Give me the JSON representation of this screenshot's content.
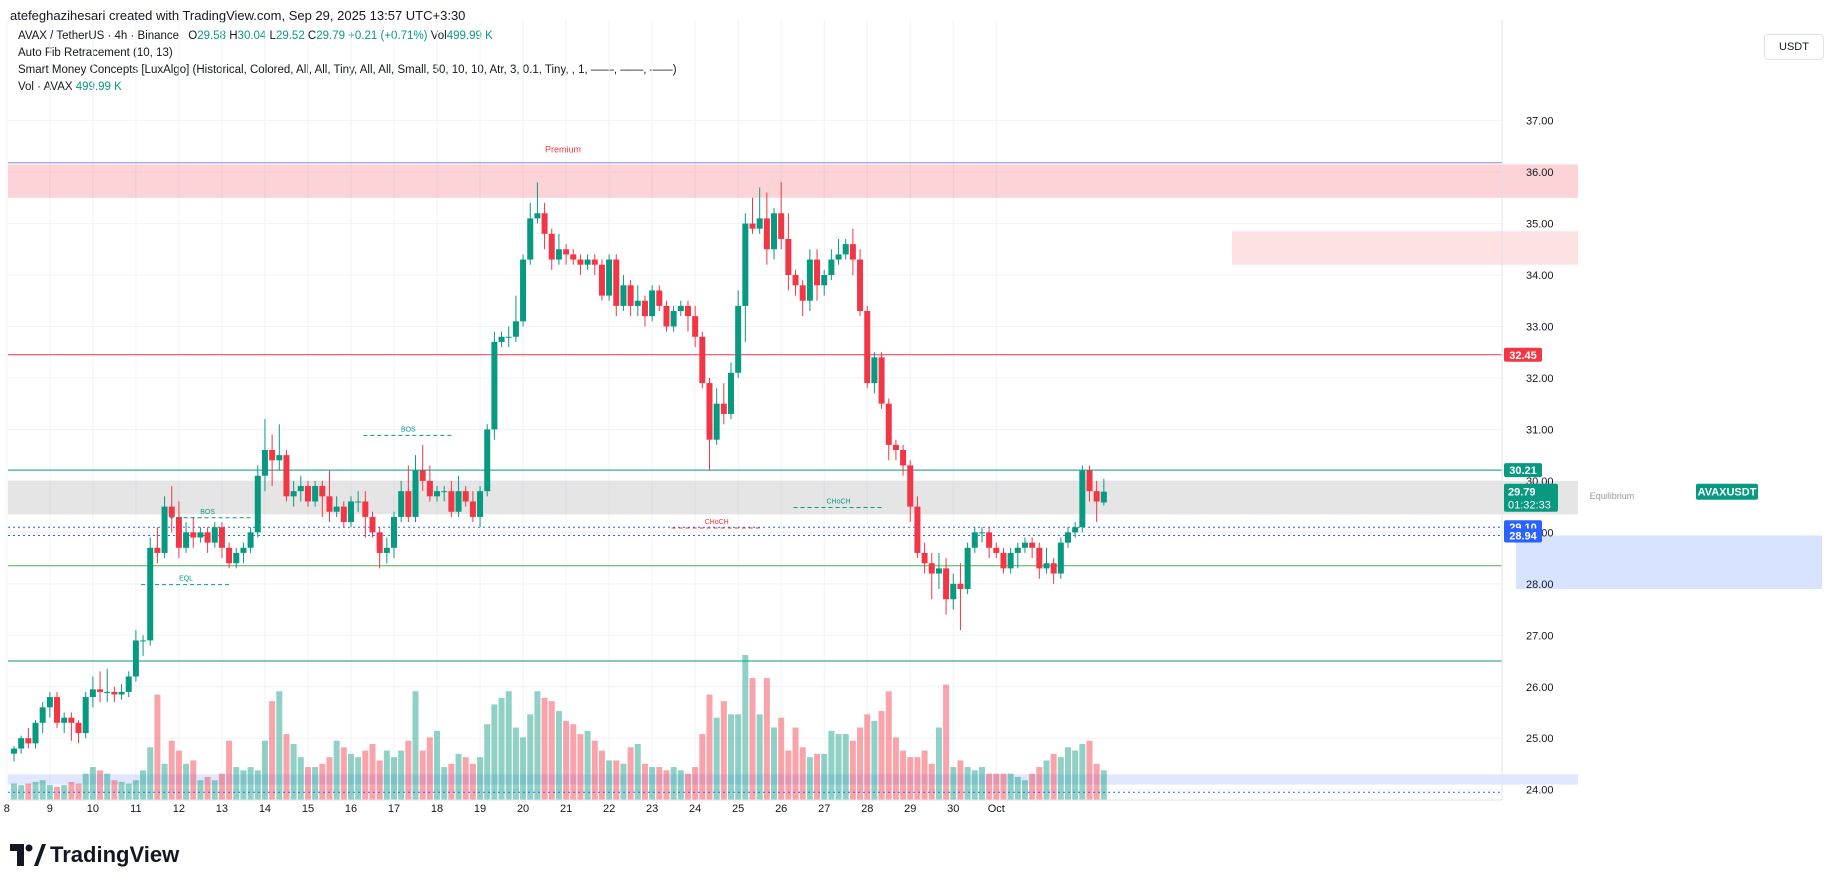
{
  "header": {
    "created_by": "atefeghazihesari created with TradingView.com, Sep 29, 2025 13:57 UTC+3:30"
  },
  "legend": {
    "symbol": "AVAX / TetherUS · 4h · Binance",
    "o_label": "O",
    "o_value": "29.58",
    "h_label": "H",
    "h_value": "30.04",
    "l_label": "L",
    "l_value": "29.52",
    "c_label": "C",
    "c_value": "29.79",
    "change": "+0.21 (+0.71%)",
    "vol_label": "Vol",
    "vol_value": "499.99 K",
    "indicator1": "Auto Fib Retracement (10, 13)",
    "indicator2": "Smart Money Concepts [LuxAlgo] (Historical, Colored, All, All, Tiny, All, All, Small, 50, 10, 10, Atr, 3, 0.1, Tiny, , 1, ——, ——, ——)",
    "indicator3_label": "Vol · AVAX",
    "indicator3_value": "499.99 K"
  },
  "currency": "USDT",
  "brand": "TradingView",
  "colors": {
    "up": "#089981",
    "down": "#f23645",
    "blue": "#2962ff",
    "grid": "#f0f3fa"
  },
  "chart_data": {
    "type": "candlestick",
    "symbol": "AVAXUSDT",
    "timeframe": "4h",
    "ylim": [
      23.8,
      37.4
    ],
    "y_ticks": [
      "24.00",
      "25.00",
      "26.00",
      "27.00",
      "28.00",
      "29.00",
      "30.00",
      "31.00",
      "32.00",
      "33.00",
      "34.00",
      "35.00",
      "36.00",
      "37.00"
    ],
    "x_ticks": [
      "8",
      "9",
      "10",
      "11",
      "12",
      "13",
      "14",
      "15",
      "16",
      "17",
      "18",
      "19",
      "20",
      "21",
      "22",
      "23",
      "24",
      "25",
      "26",
      "27",
      "28",
      "29",
      "30",
      "Oct"
    ],
    "candles": [
      [
        24.7,
        24.8,
        24.55,
        24.85
      ],
      [
        24.8,
        25.0,
        24.7,
        25.05
      ],
      [
        25.0,
        24.9,
        24.8,
        25.2
      ],
      [
        24.9,
        25.3,
        24.8,
        25.35
      ],
      [
        25.3,
        25.6,
        25.1,
        25.7
      ],
      [
        25.6,
        25.8,
        25.4,
        25.9
      ],
      [
        25.8,
        25.3,
        25.2,
        25.9
      ],
      [
        25.3,
        25.4,
        25.1,
        25.5
      ],
      [
        25.4,
        25.3,
        24.95,
        25.5
      ],
      [
        25.3,
        25.1,
        24.9,
        25.35
      ],
      [
        25.1,
        25.8,
        25.0,
        25.9
      ],
      [
        25.8,
        25.95,
        25.6,
        26.2
      ],
      [
        25.95,
        25.9,
        25.7,
        26.3
      ],
      [
        25.9,
        25.9,
        25.7,
        26.35
      ],
      [
        25.9,
        25.85,
        25.7,
        26.0
      ],
      [
        25.85,
        25.9,
        25.75,
        26.05
      ],
      [
        25.9,
        26.2,
        25.8,
        26.3
      ],
      [
        26.2,
        26.9,
        26.1,
        27.1
      ],
      [
        26.9,
        26.9,
        26.6,
        27.0
      ],
      [
        26.9,
        28.7,
        26.8,
        28.9
      ],
      [
        28.7,
        28.6,
        28.4,
        29.1
      ],
      [
        28.6,
        29.5,
        28.5,
        29.7
      ],
      [
        29.5,
        29.3,
        29.0,
        29.9
      ],
      [
        29.3,
        28.7,
        28.5,
        29.6
      ],
      [
        28.7,
        29.0,
        28.6,
        29.2
      ],
      [
        29.0,
        28.9,
        28.7,
        29.3
      ],
      [
        28.9,
        29.0,
        28.8,
        29.1
      ],
      [
        29.0,
        28.8,
        28.6,
        29.1
      ],
      [
        28.8,
        29.1,
        28.7,
        29.2
      ],
      [
        29.1,
        28.7,
        28.5,
        29.2
      ],
      [
        28.7,
        28.4,
        28.3,
        28.8
      ],
      [
        28.4,
        28.6,
        28.3,
        28.7
      ],
      [
        28.6,
        28.7,
        28.4,
        28.8
      ],
      [
        28.7,
        29.0,
        28.6,
        29.1
      ],
      [
        29.0,
        30.1,
        28.9,
        30.3
      ],
      [
        30.1,
        30.6,
        29.8,
        31.2
      ],
      [
        30.6,
        30.4,
        29.9,
        30.9
      ],
      [
        30.4,
        30.5,
        30.2,
        31.1
      ],
      [
        30.5,
        29.7,
        29.6,
        30.6
      ],
      [
        29.7,
        29.8,
        29.5,
        30.0
      ],
      [
        29.8,
        29.9,
        29.6,
        30.1
      ],
      [
        29.9,
        29.6,
        29.5,
        30.0
      ],
      [
        29.6,
        29.9,
        29.5,
        30.0
      ],
      [
        29.9,
        29.7,
        29.3,
        30.0
      ],
      [
        29.7,
        29.4,
        29.2,
        30.2
      ],
      [
        29.4,
        29.5,
        29.3,
        29.7
      ],
      [
        29.5,
        29.2,
        29.1,
        29.6
      ],
      [
        29.2,
        29.6,
        29.1,
        29.7
      ],
      [
        29.6,
        29.6,
        29.4,
        29.8
      ],
      [
        29.6,
        29.3,
        28.9,
        29.8
      ],
      [
        29.3,
        29.0,
        28.9,
        29.4
      ],
      [
        29.0,
        28.6,
        28.3,
        29.1
      ],
      [
        28.6,
        28.7,
        28.4,
        28.9
      ],
      [
        28.7,
        29.3,
        28.5,
        29.4
      ],
      [
        29.3,
        29.8,
        29.2,
        30.0
      ],
      [
        29.8,
        29.3,
        29.2,
        30.3
      ],
      [
        29.3,
        30.2,
        29.2,
        30.5
      ],
      [
        30.2,
        30.0,
        29.8,
        30.7
      ],
      [
        30.0,
        29.7,
        29.6,
        30.3
      ],
      [
        29.7,
        29.8,
        29.6,
        29.9
      ],
      [
        29.8,
        29.8,
        29.6,
        29.9
      ],
      [
        29.8,
        29.4,
        29.3,
        30.0
      ],
      [
        29.4,
        29.8,
        29.3,
        30.1
      ],
      [
        29.8,
        29.6,
        29.5,
        29.9
      ],
      [
        29.6,
        29.3,
        29.2,
        29.8
      ],
      [
        29.3,
        29.8,
        29.1,
        29.9
      ],
      [
        29.8,
        31.0,
        29.7,
        31.1
      ],
      [
        31.0,
        32.7,
        30.8,
        32.9
      ],
      [
        32.7,
        32.8,
        32.6,
        32.9
      ],
      [
        32.8,
        32.8,
        32.6,
        33.0
      ],
      [
        32.8,
        33.1,
        32.7,
        33.6
      ],
      [
        33.1,
        34.3,
        33.0,
        34.4
      ],
      [
        34.3,
        35.1,
        34.2,
        35.4
      ],
      [
        35.1,
        35.2,
        35.0,
        35.8
      ],
      [
        35.2,
        34.8,
        34.5,
        35.4
      ],
      [
        34.8,
        34.3,
        34.1,
        34.9
      ],
      [
        34.3,
        34.5,
        34.2,
        34.8
      ],
      [
        34.5,
        34.4,
        34.2,
        34.6
      ],
      [
        34.4,
        34.3,
        34.2,
        34.5
      ],
      [
        34.3,
        34.2,
        34.0,
        34.4
      ],
      [
        34.2,
        34.3,
        34.1,
        34.4
      ],
      [
        34.3,
        34.2,
        34.0,
        34.4
      ],
      [
        34.2,
        33.6,
        33.5,
        34.3
      ],
      [
        33.6,
        34.3,
        33.5,
        34.4
      ],
      [
        34.3,
        33.4,
        33.2,
        34.4
      ],
      [
        33.4,
        33.8,
        33.3,
        34.0
      ],
      [
        33.8,
        33.4,
        33.2,
        33.9
      ],
      [
        33.4,
        33.5,
        33.2,
        33.8
      ],
      [
        33.5,
        33.2,
        33.0,
        33.6
      ],
      [
        33.2,
        33.7,
        33.1,
        33.8
      ],
      [
        33.7,
        33.4,
        33.3,
        33.8
      ],
      [
        33.4,
        33.0,
        32.9,
        33.5
      ],
      [
        33.0,
        33.3,
        32.9,
        33.4
      ],
      [
        33.3,
        33.4,
        33.2,
        33.5
      ],
      [
        33.4,
        33.2,
        32.9,
        33.5
      ],
      [
        33.2,
        32.8,
        32.6,
        33.4
      ],
      [
        32.8,
        31.9,
        31.8,
        32.9
      ],
      [
        31.9,
        30.8,
        30.2,
        32.0
      ],
      [
        30.8,
        31.5,
        30.7,
        31.8
      ],
      [
        31.5,
        31.3,
        31.1,
        31.9
      ],
      [
        31.3,
        32.1,
        31.2,
        32.3
      ],
      [
        32.1,
        33.4,
        32.0,
        33.7
      ],
      [
        33.4,
        35.0,
        32.7,
        35.2
      ],
      [
        35.0,
        34.9,
        34.8,
        35.5
      ],
      [
        34.9,
        35.1,
        34.8,
        35.7
      ],
      [
        35.1,
        34.5,
        34.2,
        35.6
      ],
      [
        34.5,
        35.2,
        34.3,
        35.3
      ],
      [
        35.2,
        34.7,
        34.5,
        35.8
      ],
      [
        34.7,
        34.0,
        33.7,
        35.2
      ],
      [
        34.0,
        33.8,
        33.6,
        34.1
      ],
      [
        33.8,
        33.5,
        33.2,
        33.9
      ],
      [
        33.5,
        34.3,
        33.3,
        34.5
      ],
      [
        34.3,
        33.8,
        33.5,
        34.5
      ],
      [
        33.8,
        34.0,
        33.6,
        34.1
      ],
      [
        34.0,
        34.3,
        33.9,
        34.5
      ],
      [
        34.3,
        34.4,
        34.2,
        34.7
      ],
      [
        34.4,
        34.6,
        34.3,
        34.7
      ],
      [
        34.6,
        34.3,
        34.0,
        34.9
      ],
      [
        34.3,
        33.3,
        33.2,
        34.5
      ],
      [
        33.3,
        31.9,
        31.8,
        33.4
      ],
      [
        31.9,
        32.4,
        31.7,
        32.5
      ],
      [
        32.4,
        31.5,
        31.4,
        32.5
      ],
      [
        31.5,
        30.7,
        30.4,
        31.6
      ],
      [
        30.7,
        30.6,
        30.4,
        30.8
      ],
      [
        30.6,
        30.3,
        30.1,
        30.7
      ],
      [
        30.3,
        29.5,
        29.2,
        30.4
      ],
      [
        29.5,
        28.6,
        28.5,
        29.7
      ],
      [
        28.6,
        28.4,
        28.2,
        28.8
      ],
      [
        28.4,
        28.2,
        27.7,
        28.6
      ],
      [
        28.2,
        28.3,
        27.9,
        28.6
      ],
      [
        28.3,
        27.7,
        27.4,
        28.5
      ],
      [
        27.7,
        28.0,
        27.5,
        28.2
      ],
      [
        28.0,
        27.9,
        27.1,
        28.4
      ],
      [
        27.9,
        28.7,
        27.8,
        28.8
      ],
      [
        28.7,
        29.0,
        28.6,
        29.1
      ],
      [
        29.0,
        29.0,
        28.8,
        29.1
      ],
      [
        29.0,
        28.7,
        28.5,
        29.1
      ],
      [
        28.7,
        28.6,
        28.5,
        28.8
      ],
      [
        28.6,
        28.3,
        28.2,
        28.7
      ],
      [
        28.3,
        28.6,
        28.2,
        28.7
      ],
      [
        28.6,
        28.7,
        28.3,
        28.8
      ],
      [
        28.7,
        28.8,
        28.6,
        28.9
      ],
      [
        28.8,
        28.7,
        28.5,
        28.9
      ],
      [
        28.7,
        28.3,
        28.1,
        28.8
      ],
      [
        28.3,
        28.4,
        28.2,
        28.7
      ],
      [
        28.4,
        28.2,
        28.0,
        28.5
      ],
      [
        28.2,
        28.8,
        28.1,
        28.9
      ],
      [
        28.8,
        29.0,
        28.7,
        29.1
      ],
      [
        29.0,
        29.1,
        28.9,
        29.2
      ],
      [
        29.1,
        30.2,
        29.0,
        30.3
      ],
      [
        30.2,
        29.8,
        29.6,
        30.3
      ],
      [
        29.8,
        29.6,
        29.2,
        30.0
      ],
      [
        29.58,
        29.79,
        29.52,
        30.04
      ]
    ],
    "volumes": [
      0.5,
      0.45,
      0.5,
      0.55,
      0.6,
      0.45,
      0.4,
      0.45,
      0.55,
      0.5,
      0.8,
      1.0,
      0.9,
      0.8,
      0.6,
      0.55,
      0.5,
      0.6,
      0.9,
      1.6,
      3.2,
      1.1,
      1.8,
      1.5,
      1.1,
      1.2,
      0.6,
      0.7,
      0.6,
      0.8,
      1.8,
      1.0,
      0.9,
      1.0,
      0.9,
      1.8,
      3.0,
      3.3,
      2.0,
      1.7,
      1.3,
      1.0,
      1.0,
      1.1,
      1.3,
      1.8,
      1.6,
      1.4,
      1.3,
      1.5,
      1.7,
      1.2,
      1.5,
      1.3,
      1.5,
      1.8,
      3.3,
      1.5,
      1.9,
      2.1,
      1.0,
      1.1,
      1.4,
      1.3,
      1.1,
      1.3,
      2.3,
      2.9,
      3.1,
      3.3,
      2.2,
      1.9,
      2.6,
      3.3,
      3.1,
      3.0,
      2.7,
      2.4,
      2.3,
      2.0,
      2.1,
      1.8,
      1.5,
      1.2,
      1.2,
      1.1,
      1.6,
      1.7,
      1.1,
      1.0,
      1.0,
      0.9,
      1.0,
      0.9,
      0.8,
      1.0,
      2.0,
      3.2,
      2.5,
      3.0,
      2.6,
      2.6,
      4.4,
      3.7,
      2.6,
      3.7,
      2.2,
      2.5,
      1.5,
      2.2,
      1.6,
      1.3,
      1.4,
      1.4,
      2.1,
      2.0,
      2.0,
      1.8,
      2.2,
      2.6,
      2.4,
      2.7,
      3.3,
      1.9,
      1.5,
      1.3,
      1.3,
      1.5,
      1.1,
      2.2,
      3.5,
      1.0,
      1.2,
      1.0,
      0.9,
      1.0,
      0.8,
      0.8,
      0.8,
      0.8,
      0.7,
      0.6,
      0.8,
      1.0,
      1.2,
      1.4,
      1.3,
      1.6,
      1.5,
      1.7,
      1.8,
      1.1,
      0.9
    ],
    "zones": [
      {
        "type": "premium",
        "top": 36.15,
        "bottom": 35.5,
        "label": "Premium"
      },
      {
        "type": "supply",
        "top": 34.85,
        "bottom": 34.2
      },
      {
        "type": "equilibrium",
        "top": 30.0,
        "bottom": 29.35,
        "label": "Equilibrium"
      },
      {
        "type": "demand",
        "top": 28.94,
        "bottom": 27.9
      },
      {
        "type": "discount",
        "top": 24.3,
        "bottom": 24.1
      }
    ],
    "lines": [
      {
        "price": 36.18,
        "color": "#7b8ed6"
      },
      {
        "price": 32.45,
        "color": "#f23645",
        "label": "32.45"
      },
      {
        "price": 30.21,
        "color": "#089981",
        "label": "30.21"
      },
      {
        "price": 29.1,
        "color": "#2962ff",
        "label": "29.10"
      },
      {
        "price": 28.94,
        "color": "#2962ff",
        "label": "28.94"
      },
      {
        "price": 28.35,
        "color": "#4caf50"
      },
      {
        "price": 26.5,
        "color": "#089981"
      },
      {
        "price": 23.95,
        "color": "#2962ff"
      }
    ],
    "structure_labels": [
      {
        "text": "BOS",
        "color": "#089981",
        "price": 29.4,
        "x_index": 27
      },
      {
        "text": "EQL",
        "color": "#089981",
        "price": 28.1,
        "x_index": 24
      },
      {
        "text": "BOS",
        "color": "#089981",
        "price": 31.0,
        "x_index": 55
      },
      {
        "text": "CHoCH",
        "color": "#f23645",
        "price": 29.2,
        "x_index": 98
      },
      {
        "text": "CHoCH",
        "color": "#089981",
        "price": 29.6,
        "x_index": 115
      }
    ],
    "last_price": {
      "symbol": "AVAXUSDT",
      "price": "29.79",
      "countdown": "01:32:33"
    }
  }
}
